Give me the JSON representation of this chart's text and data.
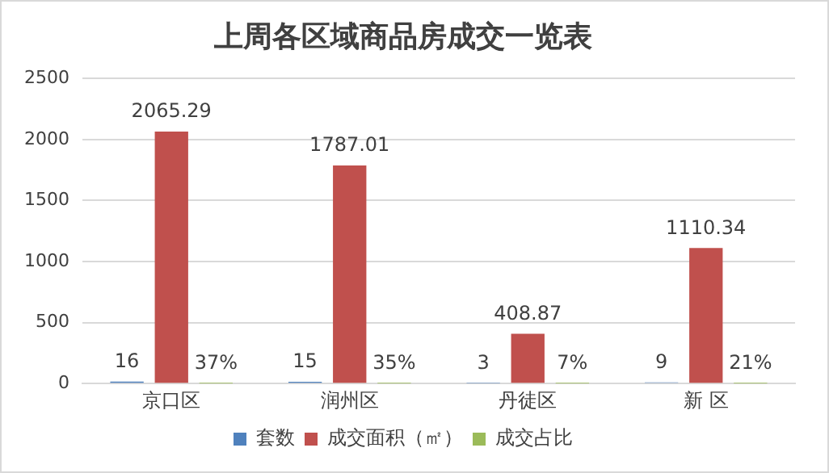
{
  "chart_data": {
    "type": "bar",
    "title": "上周各区域商品房成交一览表",
    "categories": [
      "京口区",
      "润州区",
      "丹徒区",
      "新 区"
    ],
    "series": [
      {
        "name": "套数",
        "color": "#4f81bd",
        "values": [
          16,
          15,
          3,
          9
        ],
        "value_labels": [
          "16",
          "15",
          "3",
          "9"
        ]
      },
      {
        "name": "成交面积（㎡）",
        "color": "#c0504d",
        "values": [
          2065.29,
          1787.01,
          408.87,
          1110.34
        ],
        "value_labels": [
          "2065.29",
          "1787.01",
          "408.87",
          "1110.34"
        ]
      },
      {
        "name": "成交占比",
        "color": "#9bbb59",
        "values": [
          0.37,
          0.35,
          0.07,
          0.21
        ],
        "value_labels": [
          "37%",
          "35%",
          "7%",
          "21%"
        ]
      }
    ],
    "ylim": [
      0,
      2500
    ],
    "yticks": [
      0,
      500,
      1000,
      1500,
      2000,
      2500
    ],
    "grid": "y",
    "legend": "bottom"
  }
}
